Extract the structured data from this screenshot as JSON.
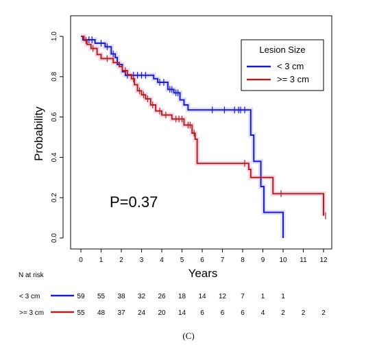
{
  "chart_data": {
    "type": "line",
    "subtype": "kaplan-meier",
    "xlabel": "Years",
    "ylabel": "Probability",
    "xlim": [
      0,
      12
    ],
    "ylim": [
      0,
      1
    ],
    "xticks": [
      0,
      1,
      2,
      3,
      4,
      5,
      6,
      7,
      8,
      9,
      10,
      11,
      12
    ],
    "yticks": [
      0.0,
      0.2,
      0.4,
      0.6,
      0.8,
      1.0
    ],
    "ytick_labels": [
      "0.0",
      "0.2",
      "0.4",
      "0.6",
      "0.8",
      "1.0"
    ],
    "grid": false,
    "annotation": "P=0.37",
    "legend": {
      "title": "Lesion Size",
      "position": "top-right",
      "entries": [
        {
          "label": "< 3 cm",
          "color": "#1a1adb"
        },
        {
          "label": ">= 3 cm",
          "color": "#b3201a"
        }
      ]
    },
    "series": [
      {
        "name": "< 3 cm",
        "color": "#1a1adb",
        "steps": [
          [
            0,
            1.0
          ],
          [
            0.1,
            0.983
          ],
          [
            0.7,
            0.966
          ],
          [
            1.2,
            0.948
          ],
          [
            1.5,
            0.913
          ],
          [
            1.7,
            0.895
          ],
          [
            1.8,
            0.86
          ],
          [
            2.05,
            0.825
          ],
          [
            2.2,
            0.807
          ],
          [
            3.6,
            0.79
          ],
          [
            3.8,
            0.772
          ],
          [
            4.3,
            0.737
          ],
          [
            4.6,
            0.72
          ],
          [
            4.9,
            0.685
          ],
          [
            5.1,
            0.66
          ],
          [
            5.3,
            0.635
          ],
          [
            8.3,
            0.635
          ],
          [
            8.4,
            0.51
          ],
          [
            8.55,
            0.38
          ],
          [
            8.9,
            0.255
          ],
          [
            9.05,
            0.127
          ],
          [
            10.0,
            0.0
          ]
        ],
        "censors": [
          [
            0.4,
            0.983
          ],
          [
            0.55,
            0.983
          ],
          [
            1.0,
            0.966
          ],
          [
            1.3,
            0.948
          ],
          [
            1.6,
            0.913
          ],
          [
            2.3,
            0.807
          ],
          [
            2.6,
            0.807
          ],
          [
            2.8,
            0.807
          ],
          [
            3.0,
            0.807
          ],
          [
            3.2,
            0.807
          ],
          [
            3.9,
            0.772
          ],
          [
            4.1,
            0.772
          ],
          [
            4.4,
            0.737
          ],
          [
            4.5,
            0.737
          ],
          [
            4.7,
            0.72
          ],
          [
            4.8,
            0.72
          ],
          [
            6.5,
            0.635
          ],
          [
            7.1,
            0.635
          ],
          [
            7.6,
            0.635
          ],
          [
            7.8,
            0.635
          ],
          [
            7.9,
            0.635
          ],
          [
            8.1,
            0.635
          ]
        ]
      },
      {
        "name": ">= 3 cm",
        "color": "#b3201a",
        "steps": [
          [
            0,
            1.0
          ],
          [
            0.15,
            0.98
          ],
          [
            0.3,
            0.96
          ],
          [
            0.5,
            0.94
          ],
          [
            0.8,
            0.91
          ],
          [
            1.0,
            0.89
          ],
          [
            1.6,
            0.87
          ],
          [
            1.9,
            0.85
          ],
          [
            2.05,
            0.83
          ],
          [
            2.3,
            0.81
          ],
          [
            2.5,
            0.79
          ],
          [
            2.65,
            0.76
          ],
          [
            2.8,
            0.73
          ],
          [
            3.0,
            0.71
          ],
          [
            3.2,
            0.69
          ],
          [
            3.45,
            0.66
          ],
          [
            3.7,
            0.63
          ],
          [
            4.0,
            0.61
          ],
          [
            4.5,
            0.59
          ],
          [
            5.1,
            0.56
          ],
          [
            5.5,
            0.52
          ],
          [
            5.65,
            0.49
          ],
          [
            5.75,
            0.37
          ],
          [
            8.3,
            0.34
          ],
          [
            8.4,
            0.3
          ],
          [
            9.5,
            0.22
          ],
          [
            12.0,
            0.11
          ]
        ],
        "censors": [
          [
            0.25,
            0.98
          ],
          [
            0.6,
            0.94
          ],
          [
            1.3,
            0.89
          ],
          [
            2.2,
            0.83
          ],
          [
            2.6,
            0.79
          ],
          [
            2.9,
            0.73
          ],
          [
            3.1,
            0.71
          ],
          [
            3.3,
            0.69
          ],
          [
            3.55,
            0.66
          ],
          [
            3.9,
            0.63
          ],
          [
            4.2,
            0.61
          ],
          [
            4.7,
            0.59
          ],
          [
            4.85,
            0.59
          ],
          [
            5.0,
            0.59
          ],
          [
            5.3,
            0.56
          ],
          [
            5.4,
            0.56
          ],
          [
            5.6,
            0.52
          ],
          [
            8.1,
            0.37
          ],
          [
            9.9,
            0.22
          ],
          [
            12.1,
            0.11
          ]
        ]
      }
    ],
    "risk_table": {
      "title": "N at risk",
      "times": [
        0,
        1,
        2,
        3,
        4,
        5,
        6,
        7,
        8,
        9,
        10,
        11,
        12
      ],
      "rows": [
        {
          "label": "< 3 cm",
          "color": "#1a1adb",
          "counts": [
            "59",
            "55",
            "38",
            "32",
            "26",
            "18",
            "14",
            "12",
            "7",
            "1",
            "1",
            "",
            ""
          ]
        },
        {
          "label": ">= 3 cm",
          "color": "#b3201a",
          "counts": [
            "55",
            "48",
            "37",
            "24",
            "20",
            "14",
            "6",
            "6",
            "6",
            "4",
            "2",
            "2",
            "2"
          ]
        }
      ]
    }
  },
  "caption": "(C)"
}
